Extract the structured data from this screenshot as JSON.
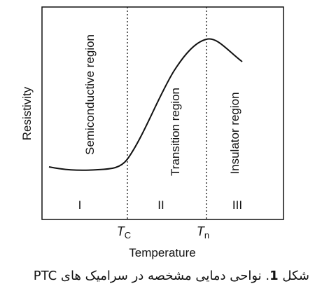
{
  "diagram": {
    "y_axis_label": "Resistivity",
    "x_axis_label": "Temperature",
    "regions": [
      {
        "name": "Semiconductive region",
        "numeral": "I"
      },
      {
        "name": "Transition region",
        "numeral": "II"
      },
      {
        "name": "Insulator region",
        "numeral": "III"
      }
    ],
    "markers": [
      {
        "symbol": "T",
        "subscript": "C"
      },
      {
        "symbol": "T",
        "subscript": "n"
      }
    ]
  },
  "caption": {
    "prefix": "شکل ",
    "number": "1",
    "text": ". نواحی دمایی مشخصه در سرامیک های PTC"
  },
  "colors": {
    "line": "#111111",
    "background": "#ffffff"
  }
}
